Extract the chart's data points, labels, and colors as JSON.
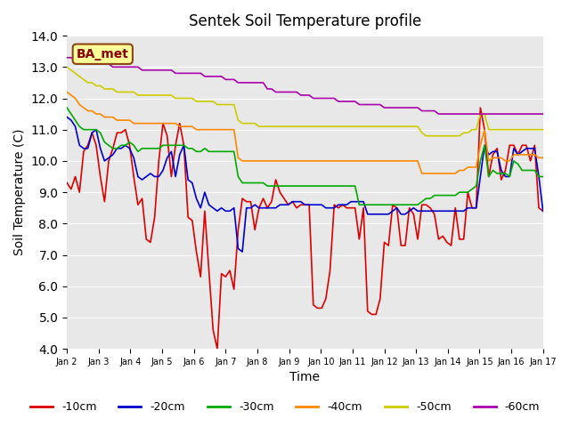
{
  "title": "Sentek Soil Temperature profile",
  "xlabel": "Time",
  "ylabel": "Soil Temperature (C)",
  "ylim": [
    4.0,
    14.0
  ],
  "yticks": [
    4.0,
    5.0,
    6.0,
    7.0,
    8.0,
    9.0,
    10.0,
    11.0,
    12.0,
    13.0,
    14.0
  ],
  "xtick_labels": [
    "Jan 2",
    "Jan 3",
    "Jan 4",
    "Jan 5",
    "Jan 6",
    "Jan 7",
    "Jan 8",
    "Jan 9",
    "Jan 10",
    "Jan 11",
    "Jan 12",
    "Jan 13",
    "Jan 14",
    "Jan 15",
    "Jan 16",
    "Jan 17"
  ],
  "bg_color": "#e8e8e8",
  "fig_color": "#ffffff",
  "annotation_text": "BA_met",
  "annotation_box_color": "#ffff99",
  "annotation_box_edge": "#8b4513",
  "series": {
    "-10cm": {
      "color": "#dd0000",
      "lw": 1.2
    },
    "-20cm": {
      "color": "#0000cc",
      "lw": 1.2
    },
    "-30cm": {
      "color": "#00aa00",
      "lw": 1.2
    },
    "-40cm": {
      "color": "#ff8800",
      "lw": 1.2
    },
    "-50cm": {
      "color": "#cccc00",
      "lw": 1.2
    },
    "-60cm": {
      "color": "#aa00aa",
      "lw": 1.2
    }
  },
  "data": {
    "-10cm": [
      9.3,
      9.1,
      9.5,
      9.0,
      10.3,
      10.5,
      10.9,
      10.5,
      9.5,
      8.7,
      10.0,
      10.4,
      10.9,
      10.9,
      11.0,
      10.5,
      9.5,
      8.6,
      8.8,
      7.5,
      7.4,
      8.2,
      10.0,
      11.2,
      10.8,
      9.5,
      10.5,
      11.2,
      10.5,
      8.2,
      8.1,
      7.1,
      6.3,
      8.4,
      6.5,
      4.6,
      4.0,
      6.4,
      6.3,
      6.5,
      5.9,
      7.8,
      8.8,
      8.7,
      8.7,
      7.8,
      8.5,
      8.8,
      8.5,
      8.7,
      9.4,
      9.0,
      8.8,
      8.6,
      8.7,
      8.5,
      8.6,
      8.6,
      8.6,
      5.4,
      5.3,
      5.3,
      5.6,
      6.5,
      8.6,
      8.5,
      8.6,
      8.5,
      8.5,
      8.5,
      7.5,
      8.5,
      5.2,
      5.1,
      5.1,
      5.6,
      7.4,
      7.3,
      8.6,
      8.5,
      7.3,
      7.3,
      8.5,
      8.3,
      7.5,
      8.6,
      8.6,
      8.5,
      8.3,
      7.5,
      7.6,
      7.4,
      7.3,
      8.5,
      7.5,
      7.5,
      9.0,
      8.5,
      8.5,
      11.7,
      11.0,
      9.5,
      10.2,
      10.4,
      9.4,
      9.7,
      10.5,
      10.5,
      10.2,
      10.5,
      10.5,
      10.0,
      10.5,
      8.5,
      8.4
    ],
    "-20cm": [
      11.4,
      11.3,
      11.1,
      10.5,
      10.4,
      10.4,
      10.9,
      11.0,
      10.4,
      10.0,
      10.1,
      10.2,
      10.4,
      10.4,
      10.5,
      10.4,
      10.1,
      9.5,
      9.4,
      9.5,
      9.6,
      9.5,
      9.5,
      9.7,
      10.1,
      10.3,
      9.5,
      10.2,
      10.5,
      9.4,
      9.3,
      8.8,
      8.5,
      9.0,
      8.6,
      8.5,
      8.4,
      8.5,
      8.4,
      8.4,
      8.5,
      7.2,
      7.1,
      8.5,
      8.5,
      8.6,
      8.5,
      8.5,
      8.5,
      8.5,
      8.5,
      8.6,
      8.6,
      8.6,
      8.7,
      8.7,
      8.7,
      8.6,
      8.6,
      8.6,
      8.6,
      8.6,
      8.5,
      8.5,
      8.5,
      8.6,
      8.6,
      8.6,
      8.7,
      8.7,
      8.7,
      8.7,
      8.3,
      8.3,
      8.3,
      8.3,
      8.3,
      8.3,
      8.4,
      8.5,
      8.3,
      8.3,
      8.4,
      8.5,
      8.4,
      8.4,
      8.4,
      8.4,
      8.4,
      8.4,
      8.4,
      8.4,
      8.4,
      8.4,
      8.4,
      8.4,
      8.5,
      8.5,
      8.5,
      9.5,
      10.5,
      10.2,
      10.3,
      10.3,
      9.7,
      9.5,
      9.5,
      10.4,
      10.2,
      10.3,
      10.4,
      10.4,
      10.4,
      9.5,
      8.4
    ],
    "-30cm": [
      11.7,
      11.5,
      11.3,
      11.1,
      11.0,
      11.0,
      11.0,
      11.0,
      10.9,
      10.6,
      10.5,
      10.4,
      10.4,
      10.5,
      10.5,
      10.6,
      10.5,
      10.3,
      10.4,
      10.4,
      10.4,
      10.4,
      10.4,
      10.5,
      10.5,
      10.5,
      10.5,
      10.5,
      10.5,
      10.4,
      10.4,
      10.3,
      10.3,
      10.4,
      10.3,
      10.3,
      10.3,
      10.3,
      10.3,
      10.3,
      10.3,
      9.5,
      9.3,
      9.3,
      9.3,
      9.3,
      9.3,
      9.3,
      9.2,
      9.2,
      9.2,
      9.2,
      9.2,
      9.2,
      9.2,
      9.2,
      9.2,
      9.2,
      9.2,
      9.2,
      9.2,
      9.2,
      9.2,
      9.2,
      9.2,
      9.2,
      9.2,
      9.2,
      9.2,
      9.2,
      8.6,
      8.6,
      8.6,
      8.6,
      8.6,
      8.6,
      8.6,
      8.6,
      8.6,
      8.6,
      8.6,
      8.6,
      8.6,
      8.6,
      8.6,
      8.7,
      8.8,
      8.8,
      8.9,
      8.9,
      8.9,
      8.9,
      8.9,
      8.9,
      9.0,
      9.0,
      9.0,
      9.1,
      9.2,
      10.0,
      10.5,
      9.5,
      9.7,
      9.6,
      9.6,
      9.6,
      9.5,
      10.0,
      9.9,
      9.7,
      9.7,
      9.7,
      9.7,
      9.5,
      9.5
    ],
    "-40cm": [
      12.2,
      12.1,
      12.0,
      11.8,
      11.7,
      11.6,
      11.6,
      11.5,
      11.5,
      11.4,
      11.4,
      11.4,
      11.3,
      11.3,
      11.3,
      11.3,
      11.2,
      11.2,
      11.2,
      11.2,
      11.2,
      11.2,
      11.2,
      11.2,
      11.2,
      11.2,
      11.2,
      11.1,
      11.1,
      11.1,
      11.1,
      11.0,
      11.0,
      11.0,
      11.0,
      11.0,
      11.0,
      11.0,
      11.0,
      11.0,
      11.0,
      10.1,
      10.0,
      10.0,
      10.0,
      10.0,
      10.0,
      10.0,
      10.0,
      10.0,
      10.0,
      10.0,
      10.0,
      10.0,
      10.0,
      10.0,
      10.0,
      10.0,
      10.0,
      10.0,
      10.0,
      10.0,
      10.0,
      10.0,
      10.0,
      10.0,
      10.0,
      10.0,
      10.0,
      10.0,
      10.0,
      10.0,
      10.0,
      10.0,
      10.0,
      10.0,
      10.0,
      10.0,
      10.0,
      10.0,
      10.0,
      10.0,
      10.0,
      10.0,
      10.0,
      9.6,
      9.6,
      9.6,
      9.6,
      9.6,
      9.6,
      9.6,
      9.6,
      9.6,
      9.7,
      9.7,
      9.8,
      9.8,
      9.8,
      10.5,
      11.0,
      10.0,
      10.1,
      10.1,
      10.1,
      10.0,
      10.0,
      10.2,
      10.2,
      10.2,
      10.2,
      10.2,
      10.2,
      10.1,
      10.1
    ],
    "-50cm": [
      13.0,
      12.9,
      12.8,
      12.7,
      12.6,
      12.5,
      12.5,
      12.4,
      12.4,
      12.3,
      12.3,
      12.3,
      12.2,
      12.2,
      12.2,
      12.2,
      12.2,
      12.1,
      12.1,
      12.1,
      12.1,
      12.1,
      12.1,
      12.1,
      12.1,
      12.1,
      12.0,
      12.0,
      12.0,
      12.0,
      12.0,
      11.9,
      11.9,
      11.9,
      11.9,
      11.9,
      11.8,
      11.8,
      11.8,
      11.8,
      11.8,
      11.3,
      11.2,
      11.2,
      11.2,
      11.2,
      11.1,
      11.1,
      11.1,
      11.1,
      11.1,
      11.1,
      11.1,
      11.1,
      11.1,
      11.1,
      11.1,
      11.1,
      11.1,
      11.1,
      11.1,
      11.1,
      11.1,
      11.1,
      11.1,
      11.1,
      11.1,
      11.1,
      11.1,
      11.1,
      11.1,
      11.1,
      11.1,
      11.1,
      11.1,
      11.1,
      11.1,
      11.1,
      11.1,
      11.1,
      11.1,
      11.1,
      11.1,
      11.1,
      11.1,
      10.9,
      10.8,
      10.8,
      10.8,
      10.8,
      10.8,
      10.8,
      10.8,
      10.8,
      10.8,
      10.9,
      10.9,
      11.0,
      11.0,
      11.5,
      11.5,
      11.0,
      11.0,
      11.0,
      11.0,
      11.0,
      11.0,
      11.0,
      11.0,
      11.0,
      11.0,
      11.0,
      11.0,
      11.0,
      11.0
    ],
    "-60cm": [
      13.3,
      13.3,
      13.2,
      13.2,
      13.1,
      13.1,
      13.1,
      13.1,
      13.1,
      13.1,
      13.1,
      13.0,
      13.0,
      13.0,
      13.0,
      13.0,
      13.0,
      13.0,
      12.9,
      12.9,
      12.9,
      12.9,
      12.9,
      12.9,
      12.9,
      12.9,
      12.8,
      12.8,
      12.8,
      12.8,
      12.8,
      12.8,
      12.8,
      12.7,
      12.7,
      12.7,
      12.7,
      12.7,
      12.6,
      12.6,
      12.6,
      12.5,
      12.5,
      12.5,
      12.5,
      12.5,
      12.5,
      12.5,
      12.3,
      12.3,
      12.2,
      12.2,
      12.2,
      12.2,
      12.2,
      12.2,
      12.1,
      12.1,
      12.1,
      12.0,
      12.0,
      12.0,
      12.0,
      12.0,
      12.0,
      11.9,
      11.9,
      11.9,
      11.9,
      11.9,
      11.8,
      11.8,
      11.8,
      11.8,
      11.8,
      11.8,
      11.7,
      11.7,
      11.7,
      11.7,
      11.7,
      11.7,
      11.7,
      11.7,
      11.7,
      11.6,
      11.6,
      11.6,
      11.6,
      11.5,
      11.5,
      11.5,
      11.5,
      11.5,
      11.5,
      11.5,
      11.5,
      11.5,
      11.5,
      11.5,
      11.5,
      11.5,
      11.5,
      11.5,
      11.5,
      11.5,
      11.5,
      11.5,
      11.5,
      11.5,
      11.5,
      11.5,
      11.5,
      11.5,
      11.5
    ]
  }
}
